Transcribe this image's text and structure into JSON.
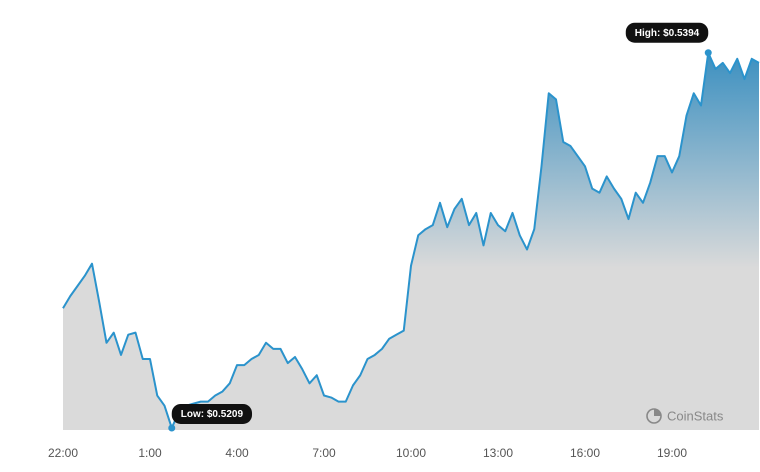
{
  "chart_data": {
    "type": "area",
    "categories": [
      "22:00",
      null,
      null,
      null,
      null,
      null,
      null,
      null,
      null,
      null,
      null,
      null,
      "1:00",
      null,
      null,
      null,
      null,
      null,
      null,
      null,
      null,
      null,
      null,
      null,
      "4:00",
      null,
      null,
      null,
      null,
      null,
      null,
      null,
      null,
      null,
      null,
      null,
      "7:00",
      null,
      null,
      null,
      null,
      null,
      null,
      null,
      null,
      null,
      null,
      null,
      "10:00",
      null,
      null,
      null,
      null,
      null,
      null,
      null,
      null,
      null,
      null,
      null,
      "13:00",
      null,
      null,
      null,
      null,
      null,
      null,
      null,
      null,
      null,
      null,
      null,
      "16:00",
      null,
      null,
      null,
      null,
      null,
      null,
      null,
      null,
      null,
      null,
      null,
      "19:00",
      null,
      null,
      null,
      null,
      null,
      null,
      null,
      null,
      null,
      null,
      null,
      null
    ],
    "values": [
      0.5268,
      0.5274,
      0.5279,
      0.5284,
      0.529,
      0.5271,
      0.5251,
      0.5256,
      0.5245,
      0.5255,
      0.5256,
      0.5243,
      0.5243,
      0.5225,
      0.522,
      0.5209,
      0.5217,
      0.522,
      0.5221,
      0.5222,
      0.5222,
      0.5225,
      0.5227,
      0.5231,
      0.524,
      0.524,
      0.5243,
      0.5245,
      0.5251,
      0.5248,
      0.5248,
      0.5241,
      0.5244,
      0.5238,
      0.5231,
      0.5235,
      0.5225,
      0.5224,
      0.5222,
      0.5222,
      0.523,
      0.5235,
      0.5243,
      0.5245,
      0.5248,
      0.5253,
      0.5255,
      0.5257,
      0.5289,
      0.5304,
      0.5307,
      0.5309,
      0.532,
      0.5308,
      0.5317,
      0.5322,
      0.5309,
      0.5315,
      0.5299,
      0.5315,
      0.5309,
      0.5306,
      0.5315,
      0.5304,
      0.5297,
      0.5307,
      0.5338,
      0.5374,
      0.5371,
      0.535,
      0.5348,
      0.5343,
      0.5338,
      0.5327,
      0.5325,
      0.5333,
      0.5327,
      0.5322,
      0.5312,
      0.5325,
      0.532,
      0.533,
      0.5343,
      0.5343,
      0.5335,
      0.5343,
      0.5363,
      0.5374,
      0.5368,
      0.5394,
      0.5386,
      0.5389,
      0.5384,
      0.5391,
      0.5381,
      0.5391,
      0.5389
    ],
    "color": "#2b93cc",
    "ylim": [
      0.5208,
      0.542
    ],
    "high_label": "High: $0.5394",
    "low_label": "Low: $0.5209",
    "watermark": "CoinStats"
  }
}
